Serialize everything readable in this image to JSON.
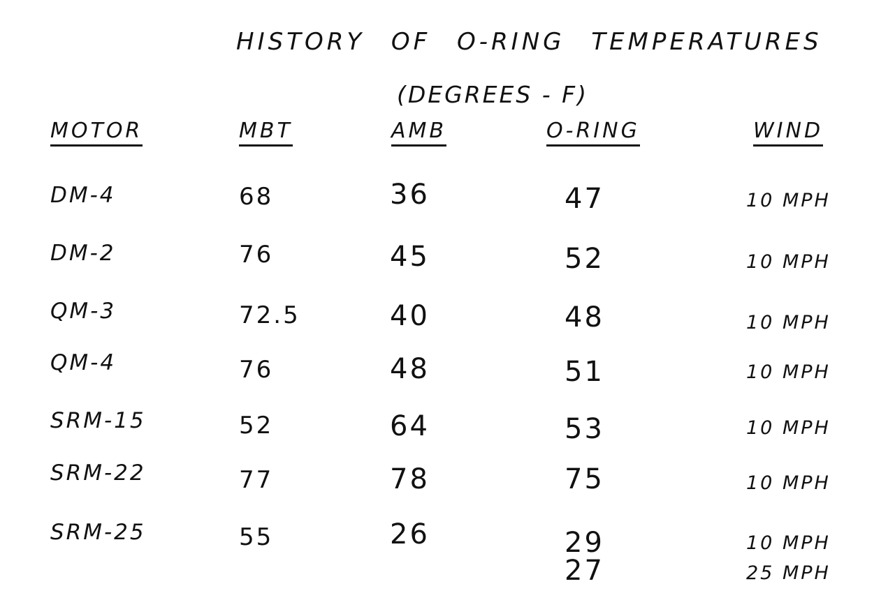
{
  "document": {
    "title": "HISTORY OF O-RING TEMPERATURES",
    "subtitle": "(DEGREES - F)",
    "headers": {
      "motor": "MOTOR",
      "mbt": "MBT",
      "amb": "AMB",
      "oring": "O-RING",
      "wind": "WIND"
    },
    "rows": [
      {
        "motor": "DM-4",
        "mbt": "68",
        "amb": "36",
        "oring": "47",
        "wind": "10 MPH"
      },
      {
        "motor": "DM-2",
        "mbt": "76",
        "amb": "45",
        "oring": "52",
        "wind": "10 MPH"
      },
      {
        "motor": "QM-3",
        "mbt": "72.5",
        "amb": "40",
        "oring": "48",
        "wind": "10 MPH"
      },
      {
        "motor": "QM-4",
        "mbt": "76",
        "amb": "48",
        "oring": "51",
        "wind": "10 MPH"
      },
      {
        "motor": "SRM-15",
        "mbt": "52",
        "amb": "64",
        "oring": "53",
        "wind": "10 MPH"
      },
      {
        "motor": "SRM-22",
        "mbt": "77",
        "amb": "78",
        "oring": "75",
        "wind": "10 MPH"
      },
      {
        "motor": "SRM-25",
        "mbt": "55",
        "amb": "26",
        "oring": "29",
        "wind": "10 MPH"
      },
      {
        "motor": "",
        "mbt": "",
        "amb": "",
        "oring": "27",
        "wind": "25 MPH"
      }
    ]
  }
}
